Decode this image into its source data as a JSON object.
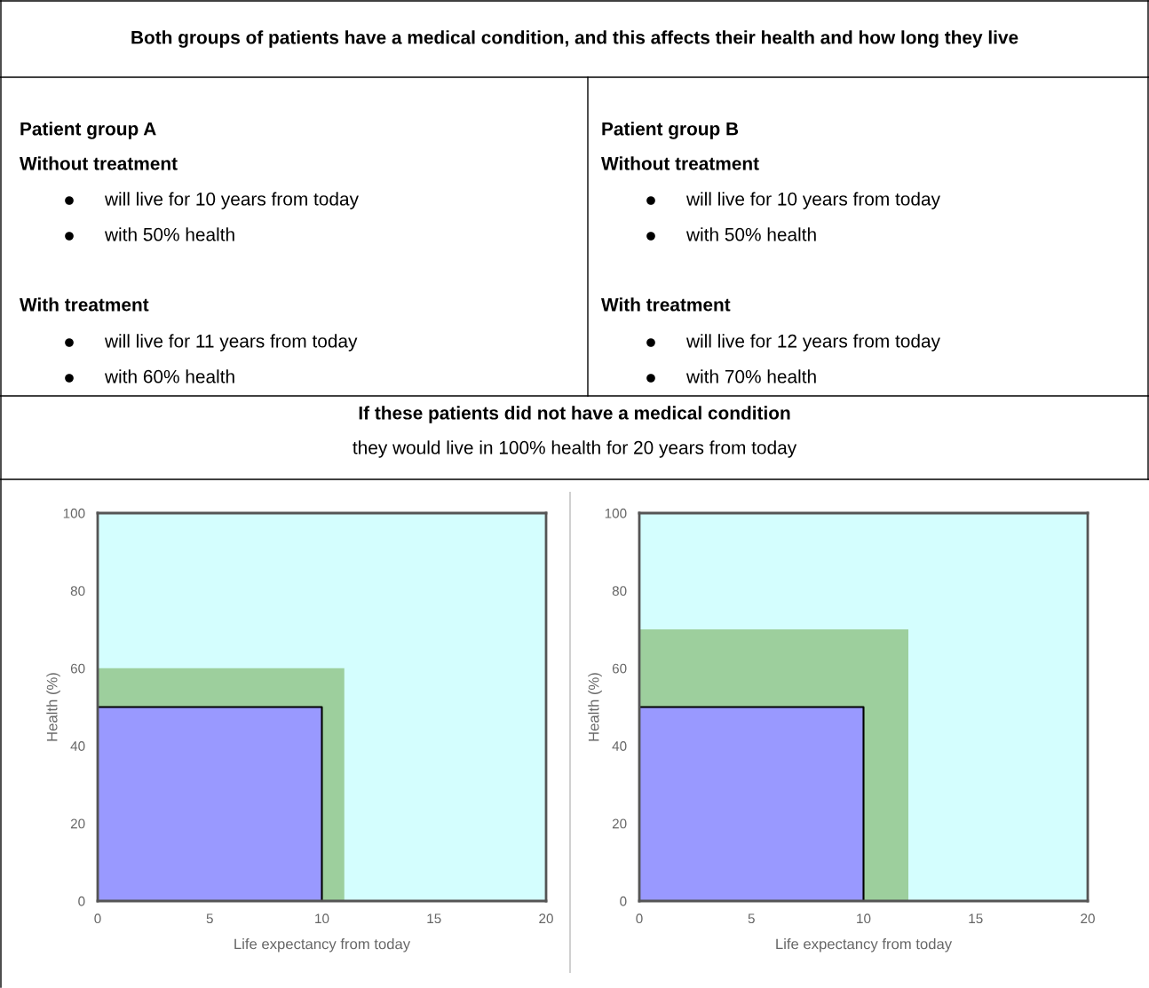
{
  "chart_data": [
    {
      "type": "other",
      "title": "Both groups of patients have a medical condition, and this affects their health and how long they live"
    },
    {
      "type": "other",
      "annotations": [
        "Patient group A",
        "Without treatment",
        "will live for 10 years from today",
        "with 50% health",
        "With treatment",
        "will live for 11 years from today",
        "with 60% health"
      ]
    },
    {
      "type": "other",
      "annotations": [
        "Patient group B",
        "Without treatment",
        "will live for 10 years from today",
        "with 50% health",
        "With treatment",
        "will live for 12 years from today",
        "with 70% health"
      ]
    },
    {
      "type": "other",
      "title": "If these patients did not have a medical condition",
      "subtitle": "they would live in 100% health for 20 years from today"
    },
    {
      "type": "area",
      "xlabel": "Life expectancy from today",
      "ylabel": "Health (%)",
      "xlim": [
        0,
        20
      ],
      "ylim": [
        0,
        100
      ],
      "xticks": [
        0,
        5,
        10,
        15,
        20
      ],
      "yticks": [
        0,
        20,
        40,
        60,
        80,
        100
      ],
      "bands": [
        {
          "axis": "x",
          "from": 0,
          "to": 20,
          "color": "#d4fefe"
        }
      ],
      "series": [
        {
          "color": "#9dcf9d",
          "x": [
            0,
            11
          ],
          "values": [
            60,
            60
          ]
        },
        {
          "color": "#9999ff",
          "x": [
            0,
            10
          ],
          "values": [
            50,
            50
          ]
        }
      ]
    },
    {
      "type": "area",
      "xlabel": "Life expectancy from today",
      "ylabel": "Health (%)",
      "xlim": [
        0,
        20
      ],
      "ylim": [
        0,
        100
      ],
      "xticks": [
        0,
        5,
        10,
        15,
        20
      ],
      "yticks": [
        0,
        20,
        40,
        60,
        80,
        100
      ],
      "bands": [
        {
          "axis": "x",
          "from": 0,
          "to": 20,
          "color": "#d4fefe"
        }
      ],
      "series": [
        {
          "color": "#9dcf9d",
          "x": [
            0,
            12
          ],
          "values": [
            70,
            70
          ]
        },
        {
          "color": "#9999ff",
          "x": [
            0,
            10
          ],
          "values": [
            50,
            50
          ]
        }
      ]
    }
  ]
}
